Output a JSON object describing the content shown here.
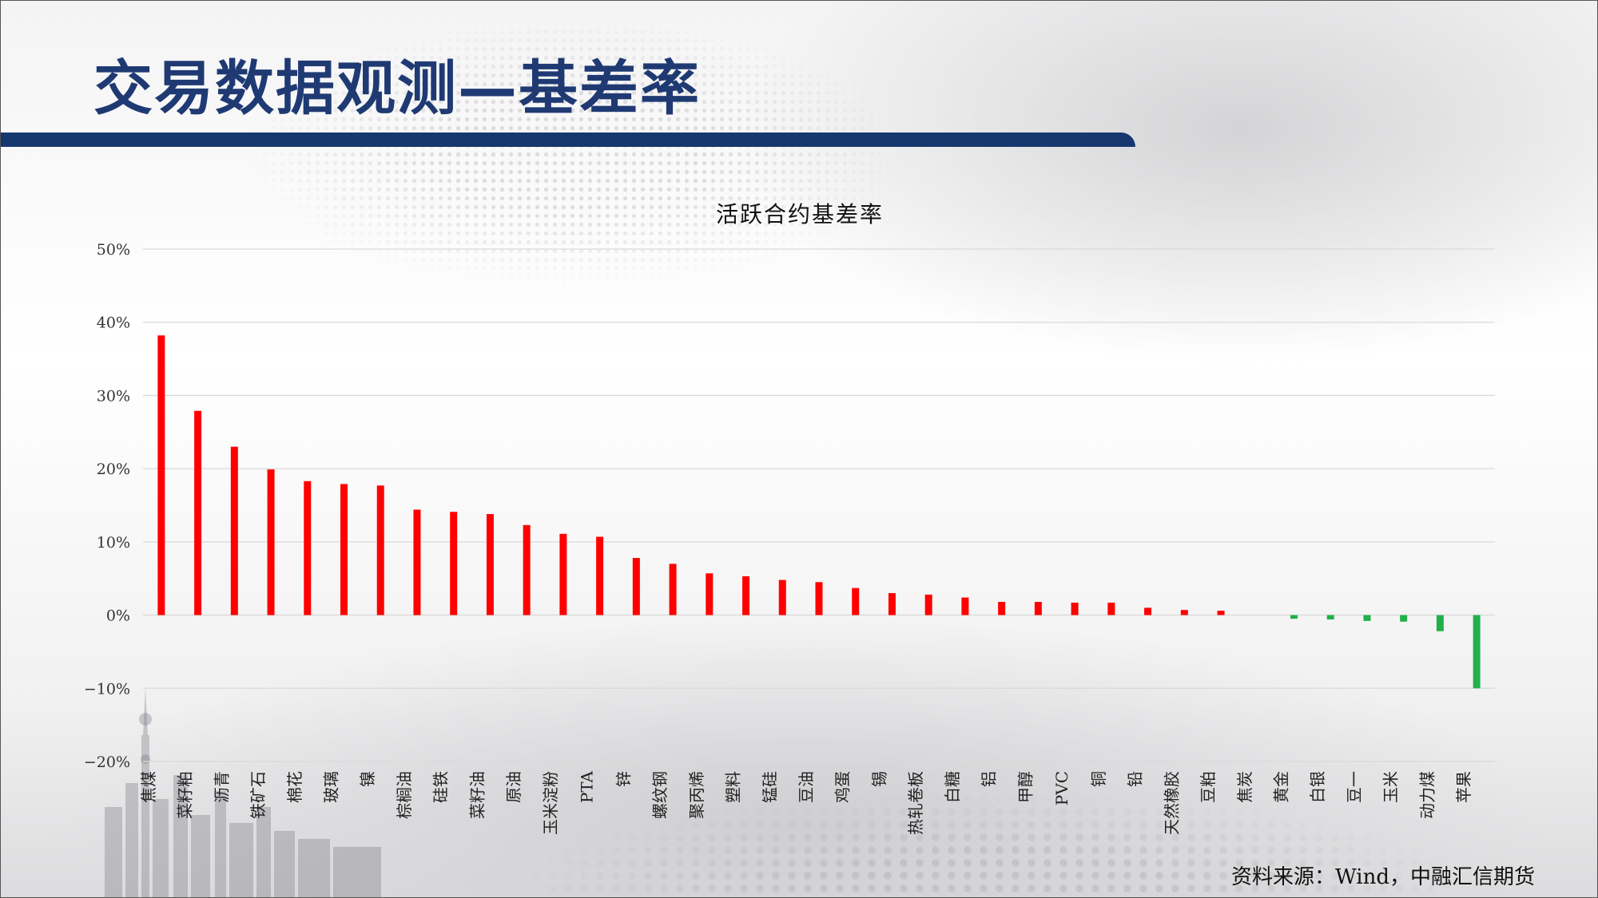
{
  "header": {
    "title": "交易数据观测—基差率"
  },
  "footer": {
    "source": "资料来源：Wind，中融汇信期货"
  },
  "colors": {
    "positive": "#ff0000",
    "negative": "#22b04a",
    "header_bar": "#17376f",
    "title": "#1f3a73",
    "grid": "#d9d9d9"
  },
  "chart_data": {
    "type": "bar",
    "title": "活跃合约基差率",
    "xlabel": "",
    "ylabel": "",
    "ylim": [
      -20,
      50
    ],
    "y_ticks": [
      50,
      40,
      30,
      20,
      10,
      0,
      -10,
      -20
    ],
    "y_tick_labels": [
      "50%",
      "40%",
      "30%",
      "20%",
      "10%",
      "0%",
      "−10%",
      "−20%"
    ],
    "grid": true,
    "legend": "none",
    "categories": [
      "焦煤",
      "菜籽粕",
      "沥青",
      "铁矿石",
      "棉花",
      "玻璃",
      "镍",
      "棕榈油",
      "硅铁",
      "菜籽油",
      "原油",
      "玉米淀粉",
      "PTA",
      "锌",
      "螺纹钢",
      "聚丙烯",
      "塑料",
      "锰硅",
      "豆油",
      "鸡蛋",
      "锡",
      "热轧卷板",
      "白糖",
      "铝",
      "甲醇",
      "PVC",
      "铜",
      "铅",
      "天然橡胶",
      "豆粕",
      "焦炭",
      "黄金",
      "白银",
      "豆一",
      "玉米",
      "动力煤",
      "苹果"
    ],
    "values": [
      38.2,
      27.9,
      23.0,
      19.9,
      18.3,
      17.9,
      17.7,
      14.4,
      14.1,
      13.8,
      12.3,
      11.1,
      10.7,
      7.8,
      7.0,
      5.7,
      5.3,
      4.8,
      4.5,
      3.7,
      3.0,
      2.8,
      2.4,
      1.8,
      1.8,
      1.7,
      1.7,
      1.0,
      0.7,
      0.6,
      0.0,
      -0.5,
      -0.6,
      -0.8,
      -0.9,
      -2.2,
      -10.0
    ]
  }
}
